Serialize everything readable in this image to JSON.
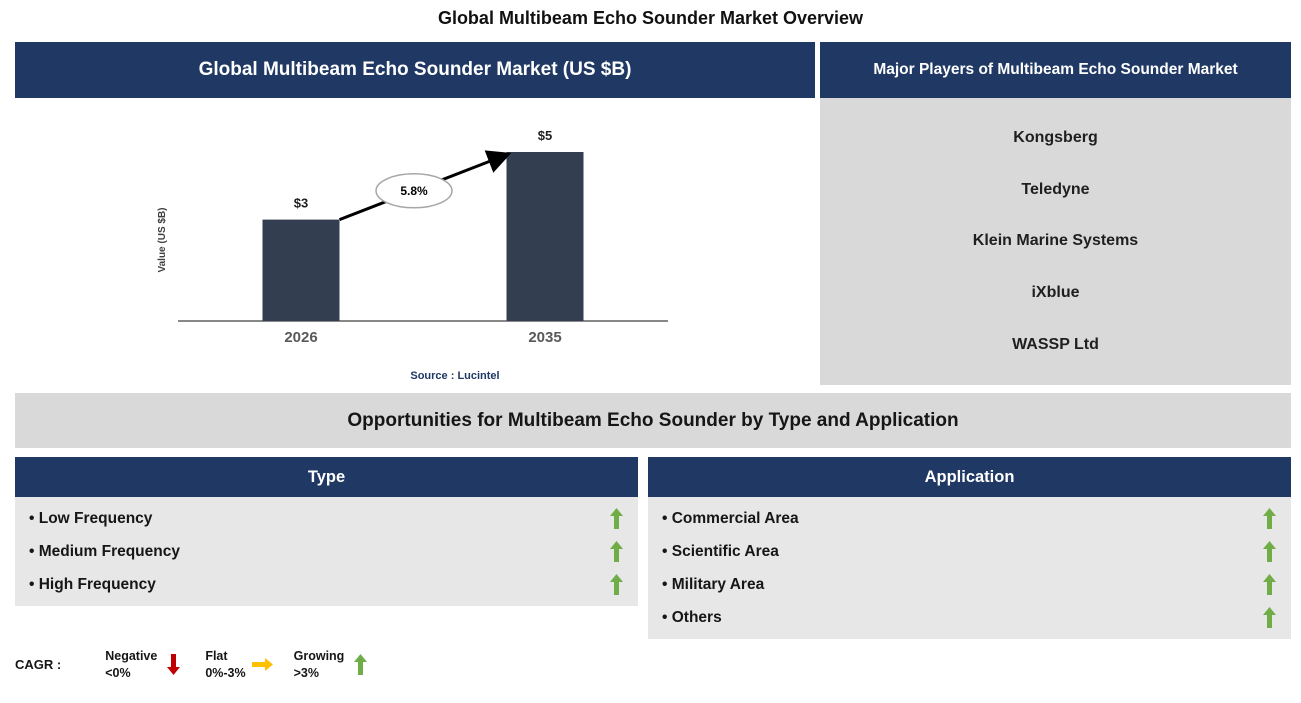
{
  "page_title": "Global Multibeam Echo Sounder Market Overview",
  "colors": {
    "navy": "#1F3864",
    "bar": "#333F50",
    "panel_gray": "#D9D9D9",
    "content_gray": "#E7E7E7",
    "green": "#70AD47",
    "red": "#C00000",
    "yellow": "#FFC000"
  },
  "chart_panel": {
    "header": "Global Multibeam Echo Sounder Market (US $B)",
    "source": "Source : Lucintel"
  },
  "chart_data": {
    "type": "bar",
    "title": "Global Multibeam Echo Sounder Market (US $B)",
    "categories": [
      "2026",
      "2035"
    ],
    "values": [
      3,
      5
    ],
    "bar_labels": [
      "$3",
      "$5"
    ],
    "annotation": "5.8%",
    "xlabel": "",
    "ylabel": "Value (US $B)",
    "ylim": [
      0,
      6
    ],
    "grid": false,
    "legend_position": "none"
  },
  "players_panel": {
    "header": "Major Players of Multibeam Echo Sounder Market",
    "players": [
      "Kongsberg",
      "Teledyne",
      "Klein Marine Systems",
      "iXblue",
      "WASSP Ltd"
    ]
  },
  "opportunities": {
    "banner": "Opportunities for Multibeam Echo Sounder by Type and Application",
    "type": {
      "header": "Type",
      "items": [
        {
          "label": "Low Frequency",
          "trend": "up"
        },
        {
          "label": "Medium Frequency",
          "trend": "up"
        },
        {
          "label": "High Frequency",
          "trend": "up"
        }
      ]
    },
    "application": {
      "header": "Application",
      "items": [
        {
          "label": "Commercial Area",
          "trend": "up"
        },
        {
          "label": "Scientific Area",
          "trend": "up"
        },
        {
          "label": "Military Area",
          "trend": "up"
        },
        {
          "label": "Others",
          "trend": "up"
        }
      ]
    }
  },
  "legend": {
    "label": "CAGR :",
    "items": [
      {
        "name": "Negative",
        "range": "<0%",
        "arrow": "down",
        "color": "#C00000"
      },
      {
        "name": "Flat",
        "range": "0%-3%",
        "arrow": "right",
        "color": "#FFC000"
      },
      {
        "name": "Growing",
        "range": ">3%",
        "arrow": "up",
        "color": "#70AD47"
      }
    ]
  }
}
